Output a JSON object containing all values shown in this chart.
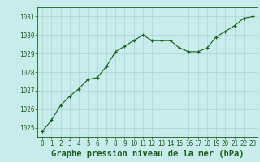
{
  "x": [
    0,
    1,
    2,
    3,
    4,
    5,
    6,
    7,
    8,
    9,
    10,
    11,
    12,
    13,
    14,
    15,
    16,
    17,
    18,
    19,
    20,
    21,
    22,
    23
  ],
  "y": [
    1024.8,
    1025.4,
    1026.2,
    1026.7,
    1027.1,
    1027.6,
    1027.7,
    1028.3,
    1029.1,
    1029.4,
    1029.7,
    1030.0,
    1029.7,
    1029.7,
    1029.7,
    1029.3,
    1029.1,
    1029.1,
    1029.3,
    1029.9,
    1030.2,
    1030.5,
    1030.9,
    1031.0
  ],
  "ylim": [
    1024.5,
    1031.5
  ],
  "yticks": [
    1025,
    1026,
    1027,
    1028,
    1029,
    1030,
    1031
  ],
  "xlim": [
    -0.5,
    23.5
  ],
  "xticks": [
    0,
    1,
    2,
    3,
    4,
    5,
    6,
    7,
    8,
    9,
    10,
    11,
    12,
    13,
    14,
    15,
    16,
    17,
    18,
    19,
    20,
    21,
    22,
    23
  ],
  "xlabel": "Graphe pression niveau de la mer (hPa)",
  "line_color": "#1a5c1a",
  "marker": "+",
  "bg_color": "#c8ecec",
  "grid_color": "#aad4d4",
  "label_color": "#1a5c1a",
  "tick_fontsize": 5.5,
  "xlabel_fontsize": 7.5
}
